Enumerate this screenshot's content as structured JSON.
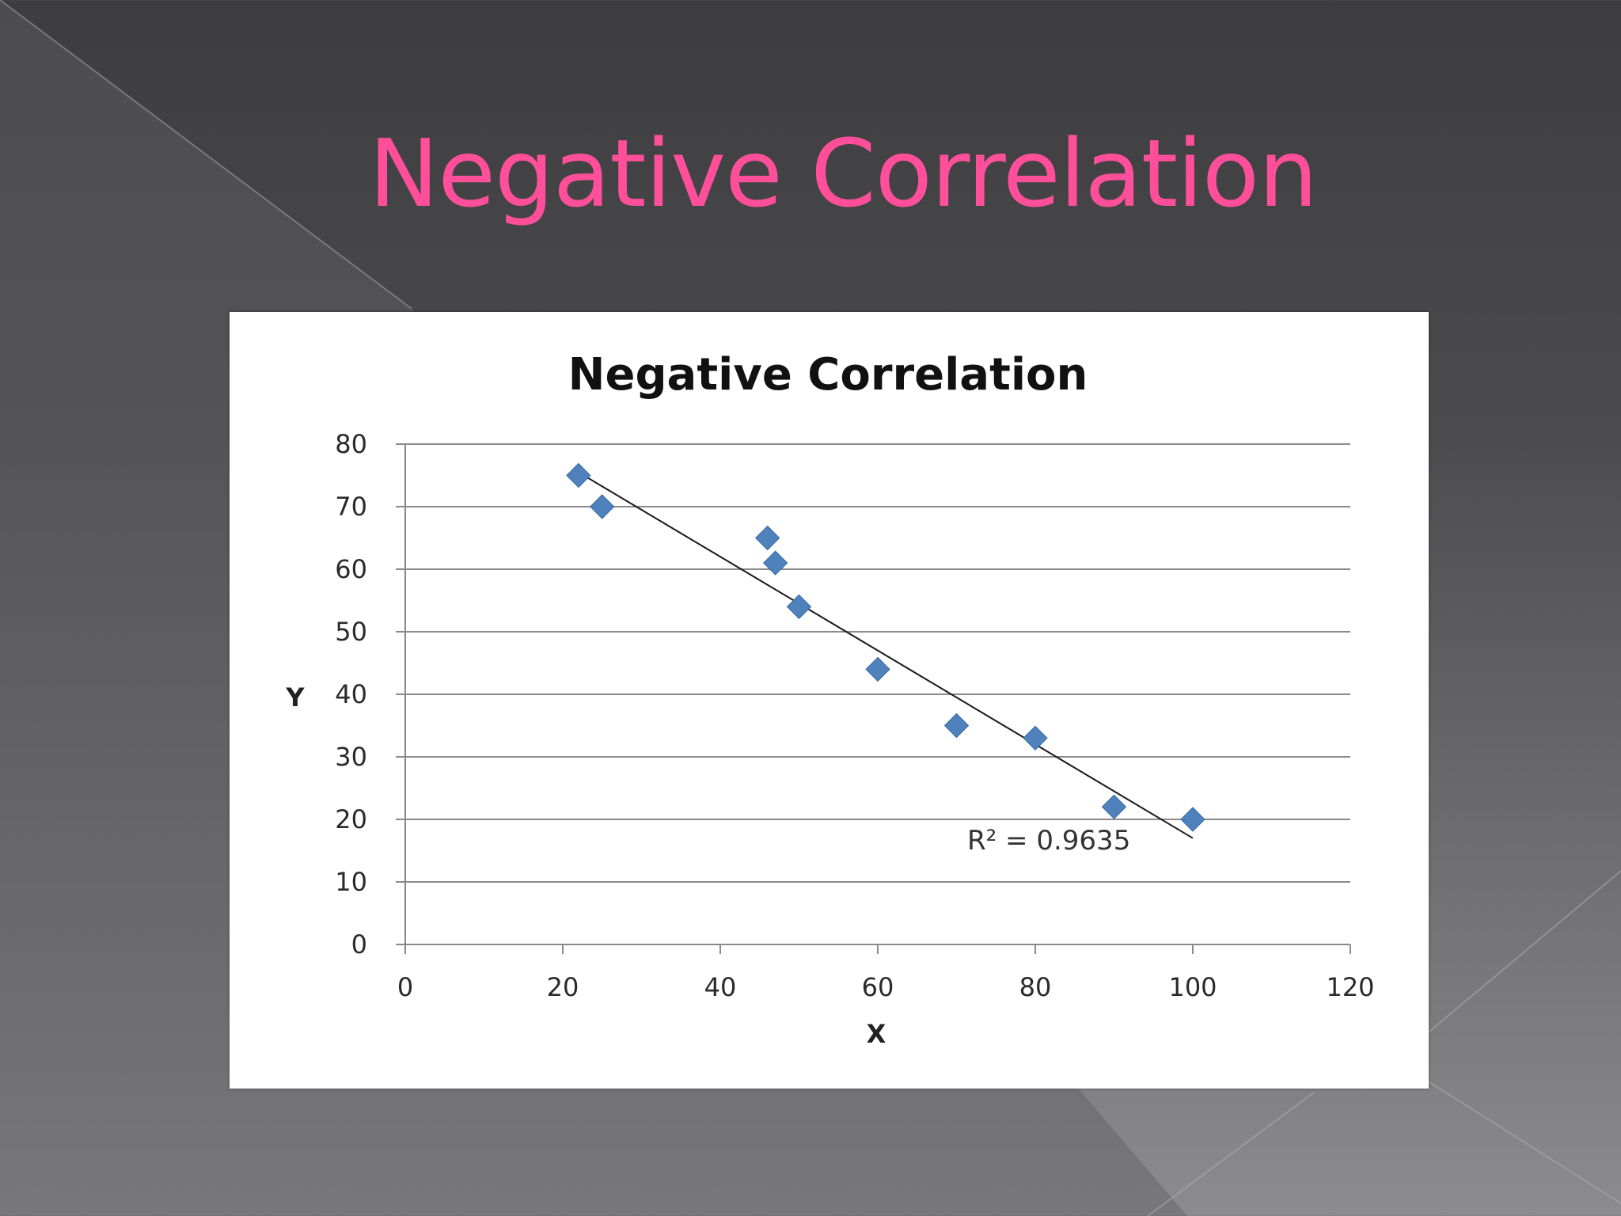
{
  "slide": {
    "title": "Negative Correlation",
    "title_color": "#ff4f9a"
  },
  "chart_data": {
    "type": "scatter",
    "title": "Negative Correlation",
    "xlabel": "X",
    "ylabel": "Y",
    "xlim": [
      0,
      120
    ],
    "ylim": [
      0,
      80
    ],
    "x_ticks": [
      0,
      20,
      40,
      60,
      80,
      100,
      120
    ],
    "y_ticks": [
      0,
      10,
      20,
      30,
      40,
      50,
      60,
      70,
      80
    ],
    "grid": "horizontal",
    "legend": "none",
    "series": [
      {
        "marker": "diamond",
        "color": "#4f81bd",
        "points": [
          {
            "x": 22,
            "y": 75
          },
          {
            "x": 25,
            "y": 70
          },
          {
            "x": 46,
            "y": 65
          },
          {
            "x": 47,
            "y": 61
          },
          {
            "x": 50,
            "y": 54
          },
          {
            "x": 60,
            "y": 44
          },
          {
            "x": 70,
            "y": 35
          },
          {
            "x": 80,
            "y": 33
          },
          {
            "x": 90,
            "y": 22
          },
          {
            "x": 100,
            "y": 20
          }
        ]
      }
    ],
    "trendline": {
      "type": "linear",
      "from": {
        "x": 22,
        "y": 75.5
      },
      "to": {
        "x": 100,
        "y": 17
      },
      "r_squared_label": "R² = 0.9635"
    }
  }
}
